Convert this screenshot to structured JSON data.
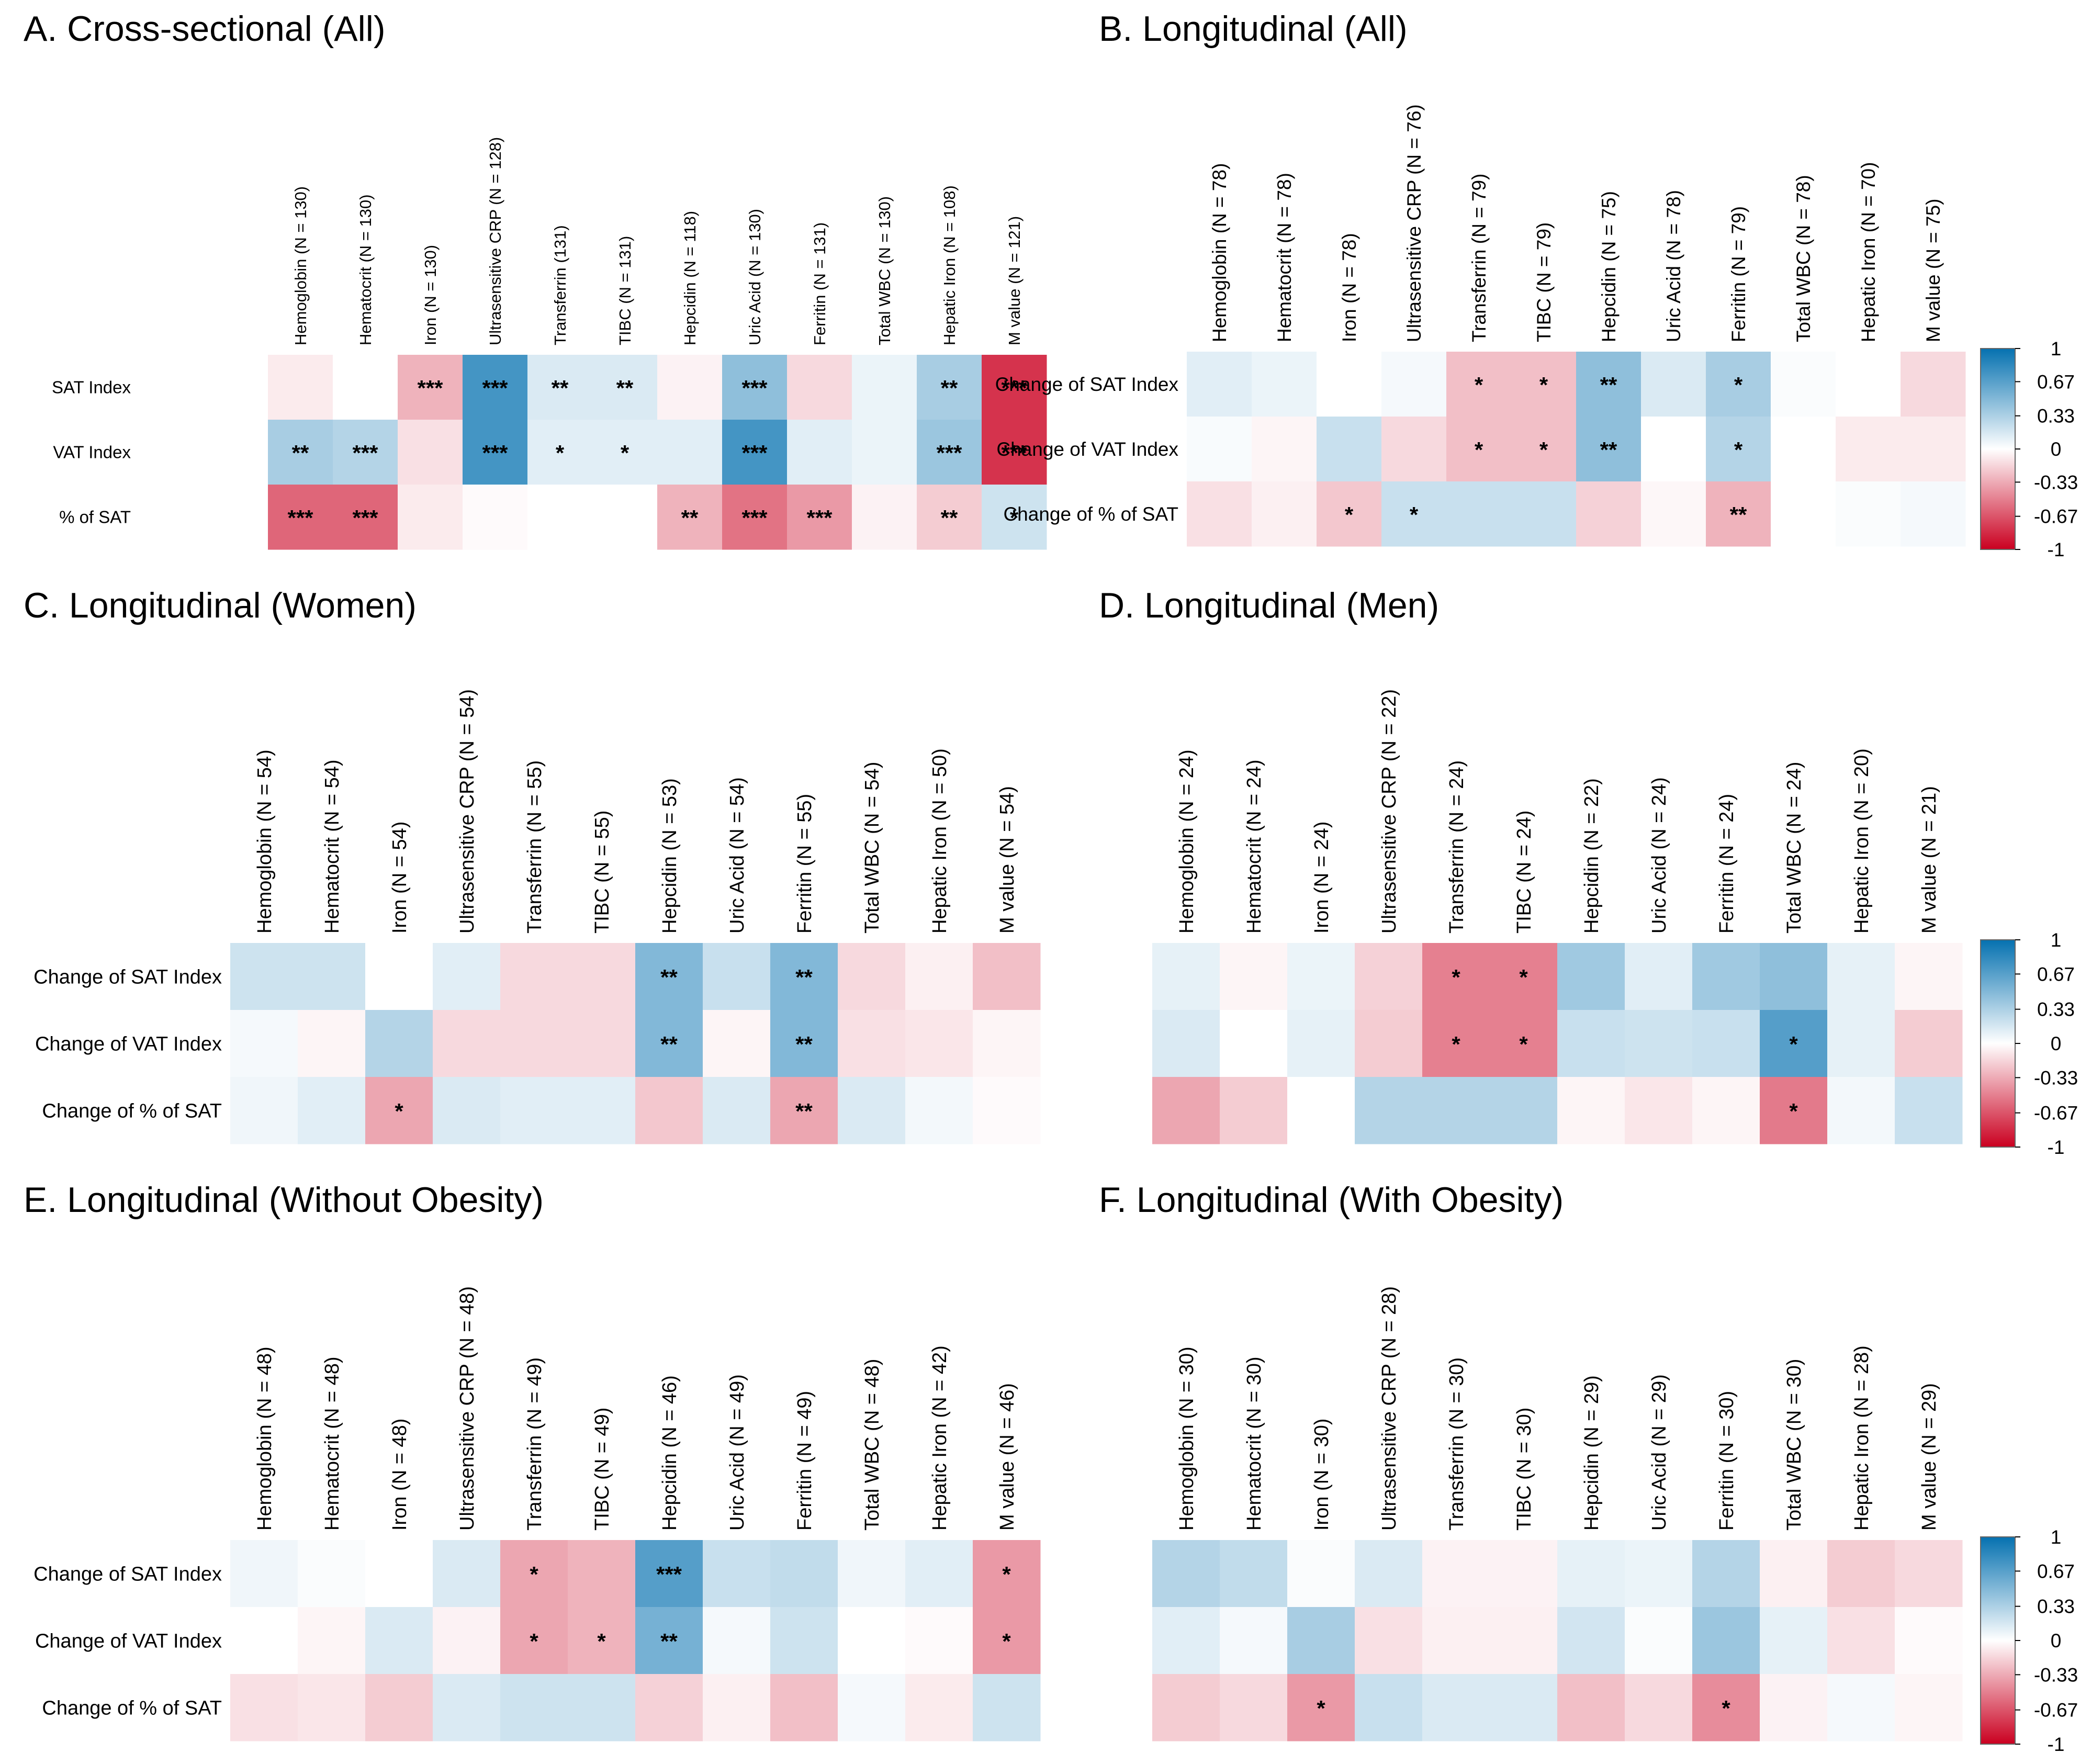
{
  "figure": {
    "colors": {
      "negative": "#ca0020",
      "neutral": "#ffffff",
      "positive": "#0571b0"
    },
    "colorbar": {
      "ticks": [
        "1",
        "0.67",
        "0.33",
        "0",
        "-0.33",
        "-0.67",
        "-1"
      ],
      "values": [
        1,
        0.67,
        0.33,
        0,
        -0.33,
        -0.67,
        -1
      ]
    }
  },
  "chart_data": [
    {
      "type": "heatmap",
      "title": "A. Cross-sectional (All)",
      "columns": [
        "Hemoglobin (N = 130)",
        "Hematocrit (N = 130)",
        "Iron (N = 130)",
        "Ultrasensitive CRP (N = 128)",
        "Transferrin (131)",
        "TIBC (N = 131)",
        "Hepcidin (N = 118)",
        "Uric Acid (N = 130)",
        "Ferritin (N = 131)",
        "Total WBC (N = 130)",
        "Hepatic Iron (N = 108)",
        "M value (N = 121)"
      ],
      "rows": [
        "SAT Index",
        "VAT Index",
        "% of SAT"
      ],
      "values": [
        [
          -0.08,
          0.0,
          -0.3,
          0.75,
          0.15,
          0.15,
          -0.05,
          0.45,
          -0.15,
          0.08,
          0.35,
          -0.8
        ],
        [
          0.35,
          0.3,
          -0.12,
          0.75,
          0.12,
          0.12,
          0.12,
          0.75,
          0.12,
          0.08,
          0.4,
          -0.8
        ],
        [
          -0.6,
          -0.6,
          -0.08,
          -0.02,
          0.0,
          0.0,
          -0.3,
          -0.55,
          -0.4,
          -0.05,
          -0.2,
          0.2
        ]
      ],
      "signif": [
        [
          "",
          "",
          "***",
          "***",
          "**",
          "**",
          "",
          "***",
          "",
          "",
          "**",
          "***"
        ],
        [
          "**",
          "***",
          "",
          "***",
          "*",
          "*",
          "",
          "***",
          "",
          "",
          "***",
          "***"
        ],
        [
          "***",
          "***",
          "",
          "",
          "",
          "",
          "**",
          "***",
          "***",
          "",
          "**",
          "*"
        ]
      ],
      "colorbar": false
    },
    {
      "type": "heatmap",
      "title": "B. Longitudinal (All)",
      "columns": [
        "Hemoglobin (N = 78)",
        "Hematocrit (N = 78)",
        "Iron (N = 78)",
        "Ultrasensitive CRP (N = 76)",
        "Transferrin (N = 79)",
        "TIBC (N = 79)",
        "Hepcidin (N = 75)",
        "Uric Acid (N = 78)",
        "Ferritin (N = 79)",
        "Total WBC (N = 78)",
        "Hepatic Iron (N = 70)",
        "M value (N = 75)"
      ],
      "rows": [
        "Change of SAT Index",
        "Change of VAT Index",
        "Change of % of SAT"
      ],
      "values": [
        [
          0.12,
          0.08,
          0.0,
          0.04,
          -0.25,
          -0.25,
          0.45,
          0.15,
          0.35,
          0.02,
          0.0,
          -0.15
        ],
        [
          0.03,
          -0.04,
          0.22,
          -0.15,
          -0.25,
          -0.25,
          0.45,
          0.0,
          0.3,
          0.0,
          -0.08,
          -0.08
        ],
        [
          -0.12,
          -0.06,
          -0.22,
          0.22,
          0.22,
          0.22,
          -0.18,
          -0.03,
          -0.3,
          0.0,
          0.02,
          0.04
        ]
      ],
      "signif": [
        [
          "",
          "",
          "",
          "",
          "*",
          "*",
          "**",
          "",
          "*",
          "",
          "",
          ""
        ],
        [
          "",
          "",
          "",
          "",
          "*",
          "*",
          "**",
          "",
          "*",
          "",
          "",
          ""
        ],
        [
          "",
          "",
          "*",
          "*",
          "",
          "",
          "",
          "",
          "**",
          "",
          "",
          ""
        ]
      ],
      "colorbar": true
    },
    {
      "type": "heatmap",
      "title": "C. Longitudinal (Women)",
      "columns": [
        "Hemoglobin (N = 54)",
        "Hematocrit (N = 54)",
        "Iron (N = 54)",
        "Ultrasensitive CRP (N = 54)",
        "Transferrin (N = 55)",
        "TIBC (N = 55)",
        "Hepcidin (N = 53)",
        "Uric Acid (N = 54)",
        "Ferritin (N = 55)",
        "Total WBC (N = 54)",
        "Hepatic Iron (N = 50)",
        "M value (N = 54)"
      ],
      "rows": [
        "Change of SAT Index",
        "Change of VAT Index",
        "Change of % of SAT"
      ],
      "values": [
        [
          0.2,
          0.2,
          0.0,
          0.12,
          -0.15,
          -0.15,
          0.5,
          0.22,
          0.5,
          -0.15,
          -0.06,
          -0.25
        ],
        [
          0.04,
          -0.04,
          0.3,
          -0.15,
          -0.15,
          -0.15,
          0.5,
          -0.04,
          0.5,
          -0.12,
          -0.1,
          -0.04
        ],
        [
          0.06,
          0.12,
          -0.35,
          0.15,
          0.12,
          0.12,
          -0.22,
          0.15,
          -0.35,
          0.15,
          0.05,
          -0.02
        ]
      ],
      "signif": [
        [
          "",
          "",
          "",
          "",
          "",
          "",
          "**",
          "",
          "**",
          "",
          "",
          ""
        ],
        [
          "",
          "",
          "",
          "",
          "",
          "",
          "**",
          "",
          "**",
          "",
          "",
          ""
        ],
        [
          "",
          "",
          "*",
          "",
          "",
          "",
          "",
          "",
          "**",
          "",
          "",
          ""
        ]
      ],
      "colorbar": false
    },
    {
      "type": "heatmap",
      "title": "D. Longitudinal (Men)",
      "columns": [
        "Hemoglobin (N = 24)",
        "Hematocrit (N = 24)",
        "Iron (N = 24)",
        "Ultrasensitive CRP (N = 22)",
        "Transferrin (N = 24)",
        "TIBC (N = 24)",
        "Hepcidin (N = 22)",
        "Uric Acid (N = 24)",
        "Ferritin (N = 24)",
        "Total WBC (N = 24)",
        "Hepatic Iron (N = 20)",
        "M value (N = 21)"
      ],
      "rows": [
        "Change of SAT Index",
        "Change of VAT Index",
        "Change of % of SAT"
      ],
      "values": [
        [
          0.1,
          -0.04,
          0.08,
          -0.18,
          -0.5,
          -0.5,
          0.38,
          0.12,
          0.38,
          0.45,
          0.1,
          -0.04
        ],
        [
          0.15,
          0.0,
          0.1,
          -0.2,
          -0.5,
          -0.5,
          0.22,
          0.2,
          0.22,
          0.68,
          0.1,
          -0.2
        ],
        [
          -0.35,
          -0.2,
          0.0,
          0.3,
          0.3,
          0.3,
          -0.04,
          -0.1,
          -0.04,
          -0.52,
          0.05,
          0.22
        ]
      ],
      "signif": [
        [
          "",
          "",
          "",
          "",
          "*",
          "*",
          "",
          "",
          "",
          "",
          "",
          ""
        ],
        [
          "",
          "",
          "",
          "",
          "*",
          "*",
          "",
          "",
          "",
          "*",
          "",
          ""
        ],
        [
          "",
          "",
          "",
          "",
          "",
          "",
          "",
          "",
          "",
          "*",
          "",
          ""
        ]
      ],
      "colorbar": true
    },
    {
      "type": "heatmap",
      "title": "E. Longitudinal (Without Obesity)",
      "columns": [
        "Hemoglobin (N = 48)",
        "Hematocrit (N = 48)",
        "Iron (N = 48)",
        "Ultrasensitive CRP (N = 48)",
        "Transferrin (N = 49)",
        "TIBC (N = 49)",
        "Hepcidin (N = 46)",
        "Uric Acid (N = 49)",
        "Ferritin (N = 49)",
        "Total WBC (N = 48)",
        "Hepatic Iron (N = 42)",
        "M value (N = 46)"
      ],
      "rows": [
        "Change of SAT Index",
        "Change of VAT Index",
        "Change of % of SAT"
      ],
      "values": [
        [
          0.06,
          0.02,
          0.0,
          0.15,
          -0.35,
          -0.3,
          0.68,
          0.22,
          0.25,
          0.06,
          0.12,
          -0.4
        ],
        [
          0.0,
          -0.04,
          0.15,
          -0.05,
          -0.35,
          -0.3,
          0.55,
          0.04,
          0.2,
          0.0,
          -0.02,
          -0.4
        ],
        [
          -0.12,
          -0.1,
          -0.2,
          0.15,
          0.2,
          0.2,
          -0.18,
          -0.06,
          -0.25,
          0.04,
          -0.08,
          0.2
        ]
      ],
      "signif": [
        [
          "",
          "",
          "",
          "",
          "*",
          "",
          "***",
          "",
          "",
          "",
          "",
          "*"
        ],
        [
          "",
          "",
          "",
          "",
          "*",
          "*",
          "**",
          "",
          "",
          "",
          "",
          "*"
        ],
        [
          "",
          "",
          "",
          "",
          "",
          "",
          "",
          "",
          "",
          "",
          "",
          ""
        ]
      ],
      "colorbar": false
    },
    {
      "type": "heatmap",
      "title": "F. Longitudinal (With Obesity)",
      "columns": [
        "Hemoglobin (N = 30)",
        "Hematocrit (N = 30)",
        "Iron (N = 30)",
        "Ultrasensitive CRP (N = 28)",
        "Transferrin (N = 30)",
        "TIBC (N = 30)",
        "Hepcidin (N = 29)",
        "Uric Acid (N = 29)",
        "Ferritin (N = 30)",
        "Total WBC (N = 30)",
        "Hepatic Iron (N = 28)",
        "M value (N = 29)"
      ],
      "rows": [
        "Change of SAT Index",
        "Change of VAT Index",
        "Change of % of SAT"
      ],
      "values": [
        [
          0.3,
          0.25,
          0.02,
          0.15,
          -0.05,
          -0.05,
          0.1,
          0.08,
          0.3,
          -0.06,
          -0.2,
          -0.15
        ],
        [
          0.12,
          0.04,
          0.35,
          -0.12,
          -0.06,
          -0.06,
          0.18,
          0.02,
          0.4,
          0.1,
          -0.12,
          -0.02
        ],
        [
          -0.2,
          -0.15,
          -0.4,
          0.22,
          0.15,
          0.15,
          -0.25,
          -0.15,
          -0.45,
          -0.05,
          0.04,
          -0.04
        ]
      ],
      "signif": [
        [
          "",
          "",
          "",
          "",
          "",
          "",
          "",
          "",
          "",
          "",
          "",
          ""
        ],
        [
          "",
          "",
          "",
          "",
          "",
          "",
          "",
          "",
          "",
          "",
          "",
          ""
        ],
        [
          "",
          "",
          "*",
          "",
          "",
          "",
          "",
          "",
          "*",
          "",
          "",
          ""
        ]
      ],
      "colorbar": true
    }
  ]
}
